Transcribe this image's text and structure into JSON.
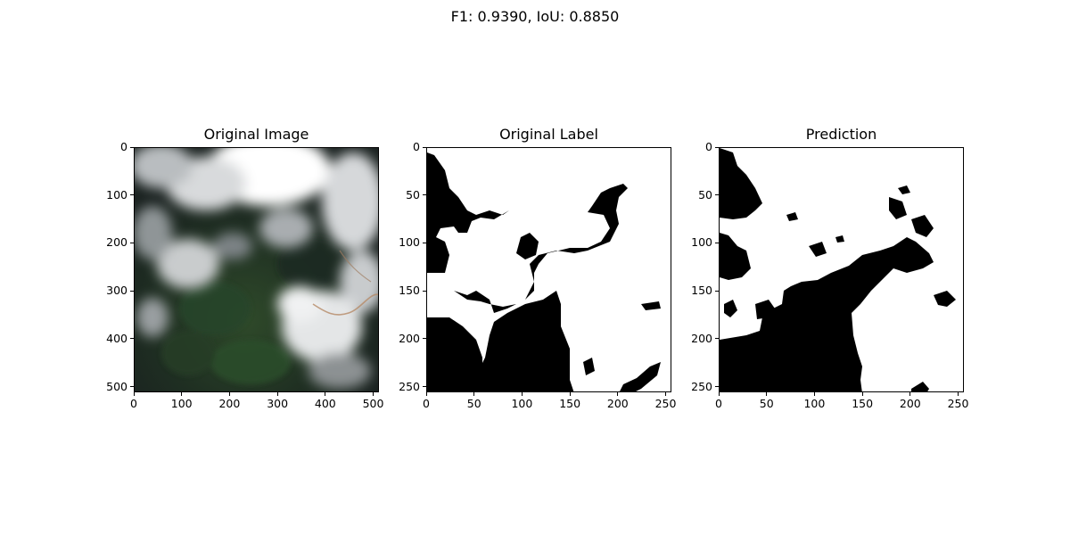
{
  "figure": {
    "suptitle": "F1: 0.9390, IoU: 0.8850"
  },
  "panels": [
    {
      "title": "Original Image",
      "kind": "rgb-satellite",
      "x_ticks": [
        "0",
        "100",
        "200",
        "300",
        "400",
        "500"
      ],
      "y_ticks": [
        "0",
        "100",
        "200",
        "300",
        "400",
        "500"
      ],
      "axis_max": 512
    },
    {
      "title": "Original Label",
      "kind": "binary-mask",
      "x_ticks": [
        "0",
        "50",
        "100",
        "150",
        "200",
        "250"
      ],
      "y_ticks": [
        "0",
        "50",
        "100",
        "150",
        "200",
        "250"
      ],
      "axis_max": 256
    },
    {
      "title": "Prediction",
      "kind": "binary-mask",
      "x_ticks": [
        "0",
        "50",
        "100",
        "150",
        "200",
        "250"
      ],
      "y_ticks": [
        "0",
        "50",
        "100",
        "150",
        "200",
        "250"
      ],
      "axis_max": 256
    }
  ]
}
